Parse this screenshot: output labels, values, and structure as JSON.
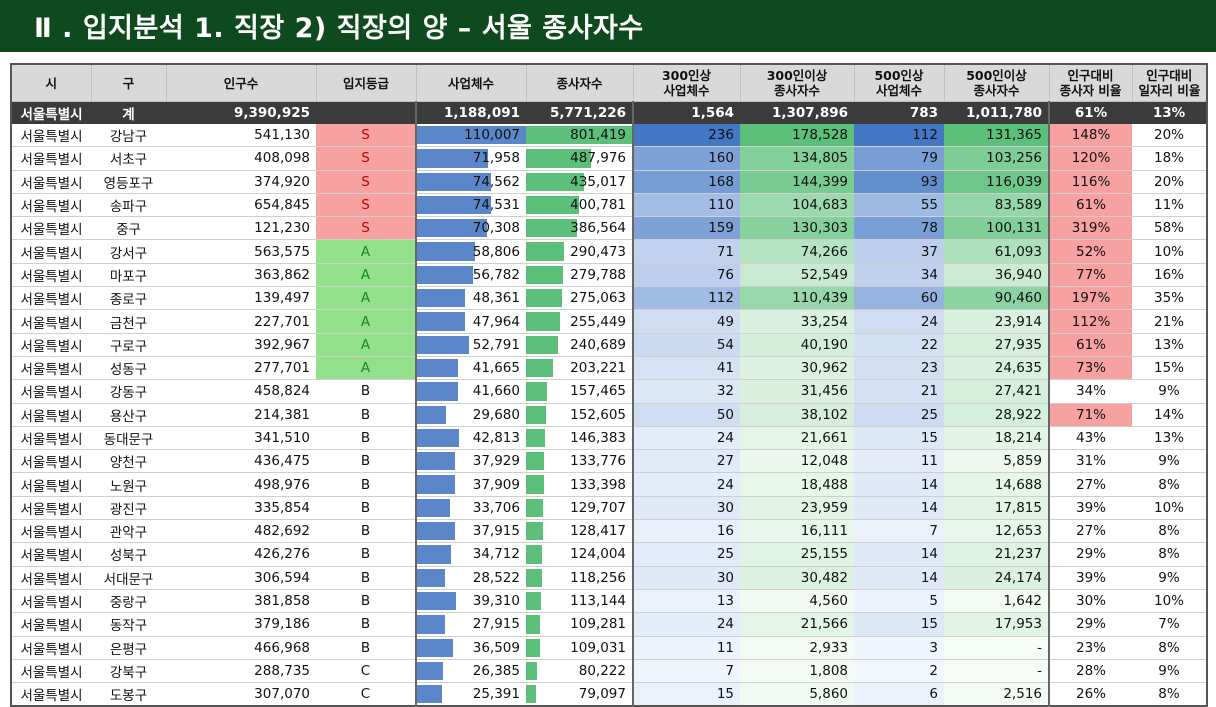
{
  "title": "Ⅱ . 입지분석 1. 직장 2) 직장의 양 – 서울 종사자수",
  "colors": {
    "header_bg": "#0f4a1f",
    "bar_business": "#5b86c9",
    "bar_employees": "#5cc07a",
    "grade_S": "#f7a1a1",
    "grade_A": "#92e08a",
    "ratio_highlight": "#f7a1a1"
  },
  "headers": {
    "city": "시",
    "district": "구",
    "population": "인구수",
    "grade": "입지등급",
    "business": "사업체수",
    "employees": "종사자수",
    "biz300": [
      "300인상",
      "사업체수"
    ],
    "emp300": [
      "300인이상",
      "종사자수"
    ],
    "biz500": [
      "500인상",
      "사업체수"
    ],
    "emp500": [
      "500인이상",
      "종사자수"
    ],
    "ratio_emp": [
      "인구대비",
      "종사자 비율"
    ],
    "ratio_job": [
      "인구대비",
      "일자리 비율"
    ]
  },
  "total": {
    "city": "서울특별시",
    "district": "계",
    "population": "9,390,925",
    "grade": "",
    "business": "1,188,091",
    "employees": "5,771,226",
    "biz300": "1,564",
    "emp300": "1,307,896",
    "biz500": "783",
    "emp500": "1,011,780",
    "ratio_emp": "61%",
    "ratio_job": "13%"
  },
  "rows": [
    {
      "city": "서울특별시",
      "district": "강남구",
      "population": "541,130",
      "grade": "S",
      "business": "110,007",
      "employees": "801,419",
      "biz300": "236",
      "emp300": "178,528",
      "biz500": "112",
      "emp500": "131,365",
      "ratio_emp": "148%",
      "ratio_job": "20%"
    },
    {
      "city": "서울특별시",
      "district": "서초구",
      "population": "408,098",
      "grade": "S",
      "business": "71,958",
      "employees": "487,976",
      "biz300": "160",
      "emp300": "134,805",
      "biz500": "79",
      "emp500": "103,256",
      "ratio_emp": "120%",
      "ratio_job": "18%"
    },
    {
      "city": "서울특별시",
      "district": "영등포구",
      "population": "374,920",
      "grade": "S",
      "business": "74,562",
      "employees": "435,017",
      "biz300": "168",
      "emp300": "144,399",
      "biz500": "93",
      "emp500": "116,039",
      "ratio_emp": "116%",
      "ratio_job": "20%"
    },
    {
      "city": "서울특별시",
      "district": "송파구",
      "population": "654,845",
      "grade": "S",
      "business": "74,531",
      "employees": "400,781",
      "biz300": "110",
      "emp300": "104,683",
      "biz500": "55",
      "emp500": "83,589",
      "ratio_emp": "61%",
      "ratio_job": "11%"
    },
    {
      "city": "서울특별시",
      "district": "중구",
      "population": "121,230",
      "grade": "S",
      "business": "70,308",
      "employees": "386,564",
      "biz300": "159",
      "emp300": "130,303",
      "biz500": "78",
      "emp500": "100,131",
      "ratio_emp": "319%",
      "ratio_job": "58%"
    },
    {
      "city": "서울특별시",
      "district": "강서구",
      "population": "563,575",
      "grade": "A",
      "business": "58,806",
      "employees": "290,473",
      "biz300": "71",
      "emp300": "74,266",
      "biz500": "37",
      "emp500": "61,093",
      "ratio_emp": "52%",
      "ratio_job": "10%"
    },
    {
      "city": "서울특별시",
      "district": "마포구",
      "population": "363,862",
      "grade": "A",
      "business": "56,782",
      "employees": "279,788",
      "biz300": "76",
      "emp300": "52,549",
      "biz500": "34",
      "emp500": "36,940",
      "ratio_emp": "77%",
      "ratio_job": "16%"
    },
    {
      "city": "서울특별시",
      "district": "종로구",
      "population": "139,497",
      "grade": "A",
      "business": "48,361",
      "employees": "275,063",
      "biz300": "112",
      "emp300": "110,439",
      "biz500": "60",
      "emp500": "90,460",
      "ratio_emp": "197%",
      "ratio_job": "35%"
    },
    {
      "city": "서울특별시",
      "district": "금천구",
      "population": "227,701",
      "grade": "A",
      "business": "47,964",
      "employees": "255,449",
      "biz300": "49",
      "emp300": "33,254",
      "biz500": "24",
      "emp500": "23,914",
      "ratio_emp": "112%",
      "ratio_job": "21%"
    },
    {
      "city": "서울특별시",
      "district": "구로구",
      "population": "392,967",
      "grade": "A",
      "business": "52,791",
      "employees": "240,689",
      "biz300": "54",
      "emp300": "40,190",
      "biz500": "22",
      "emp500": "27,935",
      "ratio_emp": "61%",
      "ratio_job": "13%"
    },
    {
      "city": "서울특별시",
      "district": "성동구",
      "population": "277,701",
      "grade": "A",
      "business": "41,665",
      "employees": "203,221",
      "biz300": "41",
      "emp300": "30,962",
      "biz500": "23",
      "emp500": "24,635",
      "ratio_emp": "73%",
      "ratio_job": "15%"
    },
    {
      "city": "서울특별시",
      "district": "강동구",
      "population": "458,824",
      "grade": "B",
      "business": "41,660",
      "employees": "157,465",
      "biz300": "32",
      "emp300": "31,456",
      "biz500": "21",
      "emp500": "27,421",
      "ratio_emp": "34%",
      "ratio_job": "9%"
    },
    {
      "city": "서울특별시",
      "district": "용산구",
      "population": "214,381",
      "grade": "B",
      "business": "29,680",
      "employees": "152,605",
      "biz300": "50",
      "emp300": "38,102",
      "biz500": "25",
      "emp500": "28,922",
      "ratio_emp": "71%",
      "ratio_job": "14%"
    },
    {
      "city": "서울특별시",
      "district": "동대문구",
      "population": "341,510",
      "grade": "B",
      "business": "42,813",
      "employees": "146,383",
      "biz300": "24",
      "emp300": "21,661",
      "biz500": "15",
      "emp500": "18,214",
      "ratio_emp": "43%",
      "ratio_job": "13%"
    },
    {
      "city": "서울특별시",
      "district": "양천구",
      "population": "436,475",
      "grade": "B",
      "business": "37,929",
      "employees": "133,776",
      "biz300": "27",
      "emp300": "12,048",
      "biz500": "11",
      "emp500": "5,859",
      "ratio_emp": "31%",
      "ratio_job": "9%"
    },
    {
      "city": "서울특별시",
      "district": "노원구",
      "population": "498,976",
      "grade": "B",
      "business": "37,909",
      "employees": "133,398",
      "biz300": "24",
      "emp300": "18,488",
      "biz500": "14",
      "emp500": "14,688",
      "ratio_emp": "27%",
      "ratio_job": "8%"
    },
    {
      "city": "서울특별시",
      "district": "광진구",
      "population": "335,854",
      "grade": "B",
      "business": "33,706",
      "employees": "129,707",
      "biz300": "30",
      "emp300": "23,959",
      "biz500": "14",
      "emp500": "17,815",
      "ratio_emp": "39%",
      "ratio_job": "10%"
    },
    {
      "city": "서울특별시",
      "district": "관악구",
      "population": "482,692",
      "grade": "B",
      "business": "37,915",
      "employees": "128,417",
      "biz300": "16",
      "emp300": "16,111",
      "biz500": "7",
      "emp500": "12,653",
      "ratio_emp": "27%",
      "ratio_job": "8%"
    },
    {
      "city": "서울특별시",
      "district": "성북구",
      "population": "426,276",
      "grade": "B",
      "business": "34,712",
      "employees": "124,004",
      "biz300": "25",
      "emp300": "25,155",
      "biz500": "14",
      "emp500": "21,237",
      "ratio_emp": "29%",
      "ratio_job": "8%"
    },
    {
      "city": "서울특별시",
      "district": "서대문구",
      "population": "306,594",
      "grade": "B",
      "business": "28,522",
      "employees": "118,256",
      "biz300": "30",
      "emp300": "30,482",
      "biz500": "14",
      "emp500": "24,174",
      "ratio_emp": "39%",
      "ratio_job": "9%"
    },
    {
      "city": "서울특별시",
      "district": "중랑구",
      "population": "381,858",
      "grade": "B",
      "business": "39,310",
      "employees": "113,144",
      "biz300": "13",
      "emp300": "4,560",
      "biz500": "5",
      "emp500": "1,642",
      "ratio_emp": "30%",
      "ratio_job": "10%"
    },
    {
      "city": "서울특별시",
      "district": "동작구",
      "population": "379,186",
      "grade": "B",
      "business": "27,915",
      "employees": "109,281",
      "biz300": "24",
      "emp300": "21,566",
      "biz500": "15",
      "emp500": "17,953",
      "ratio_emp": "29%",
      "ratio_job": "7%"
    },
    {
      "city": "서울특별시",
      "district": "은평구",
      "population": "466,968",
      "grade": "B",
      "business": "36,509",
      "employees": "109,031",
      "biz300": "11",
      "emp300": "2,933",
      "biz500": "3",
      "emp500": "-",
      "ratio_emp": "23%",
      "ratio_job": "8%"
    },
    {
      "city": "서울특별시",
      "district": "강북구",
      "population": "288,735",
      "grade": "C",
      "business": "26,385",
      "employees": "80,222",
      "biz300": "7",
      "emp300": "1,808",
      "biz500": "2",
      "emp500": "-",
      "ratio_emp": "28%",
      "ratio_job": "9%"
    },
    {
      "city": "서울특별시",
      "district": "도봉구",
      "population": "307,070",
      "grade": "C",
      "business": "25,391",
      "employees": "79,097",
      "biz300": "15",
      "emp300": "5,860",
      "biz500": "6",
      "emp500": "2,516",
      "ratio_emp": "26%",
      "ratio_job": "8%"
    }
  ]
}
